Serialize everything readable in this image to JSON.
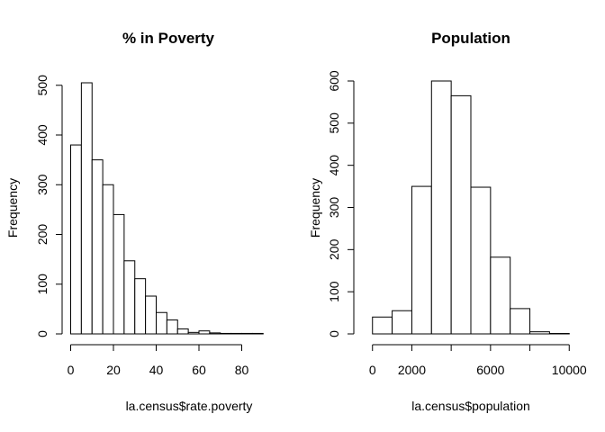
{
  "chart_data": [
    {
      "type": "histogram",
      "title": "% in Poverty",
      "xlabel": "la.census$rate.poverty",
      "ylabel": "Frequency",
      "bins": [
        {
          "x0": 0,
          "x1": 5,
          "count": 380
        },
        {
          "x0": 5,
          "x1": 10,
          "count": 505
        },
        {
          "x0": 10,
          "x1": 15,
          "count": 350
        },
        {
          "x0": 15,
          "x1": 20,
          "count": 300
        },
        {
          "x0": 20,
          "x1": 25,
          "count": 240
        },
        {
          "x0": 25,
          "x1": 30,
          "count": 147
        },
        {
          "x0": 30,
          "x1": 35,
          "count": 111
        },
        {
          "x0": 35,
          "x1": 40,
          "count": 76
        },
        {
          "x0": 40,
          "x1": 45,
          "count": 43
        },
        {
          "x0": 45,
          "x1": 50,
          "count": 28
        },
        {
          "x0": 50,
          "x1": 55,
          "count": 10
        },
        {
          "x0": 55,
          "x1": 60,
          "count": 3
        },
        {
          "x0": 60,
          "x1": 65,
          "count": 6
        },
        {
          "x0": 65,
          "x1": 70,
          "count": 2
        },
        {
          "x0": 70,
          "x1": 75,
          "count": 1
        },
        {
          "x0": 75,
          "x1": 80,
          "count": 1
        },
        {
          "x0": 80,
          "x1": 85,
          "count": 1
        },
        {
          "x0": 85,
          "x1": 90,
          "count": 1
        }
      ],
      "xticks": [
        0,
        20,
        40,
        60,
        80
      ],
      "xtick_labels": [
        "0",
        "20",
        "40",
        "60",
        "80"
      ],
      "yticks": [
        0,
        100,
        200,
        300,
        400,
        500
      ],
      "ytick_labels": [
        "0",
        "100",
        "200",
        "300",
        "400",
        "500"
      ],
      "xlim": [
        -4,
        92
      ],
      "ylim": [
        0,
        505
      ]
    },
    {
      "type": "histogram",
      "title": "Population",
      "xlabel": "la.census$population",
      "ylabel": "Frequency",
      "bins": [
        {
          "x0": 0,
          "x1": 1000,
          "count": 40
        },
        {
          "x0": 1000,
          "x1": 2000,
          "count": 55
        },
        {
          "x0": 2000,
          "x1": 3000,
          "count": 350
        },
        {
          "x0": 3000,
          "x1": 4000,
          "count": 600
        },
        {
          "x0": 4000,
          "x1": 5000,
          "count": 565
        },
        {
          "x0": 5000,
          "x1": 6000,
          "count": 348
        },
        {
          "x0": 6000,
          "x1": 7000,
          "count": 182
        },
        {
          "x0": 7000,
          "x1": 8000,
          "count": 60
        },
        {
          "x0": 8000,
          "x1": 9000,
          "count": 5
        },
        {
          "x0": 9000,
          "x1": 10000,
          "count": 1
        }
      ],
      "xticks": [
        0,
        2000,
        4000,
        6000,
        8000,
        10000
      ],
      "xtick_labels": [
        "0",
        "2000",
        "",
        "6000",
        "",
        "10000"
      ],
      "yticks": [
        0,
        100,
        200,
        300,
        400,
        500,
        600
      ],
      "ytick_labels": [
        "0",
        "100",
        "200",
        "300",
        "400",
        "500",
        "600"
      ],
      "xlim": [
        -400,
        10400
      ],
      "ylim": [
        0,
        600
      ]
    }
  ]
}
